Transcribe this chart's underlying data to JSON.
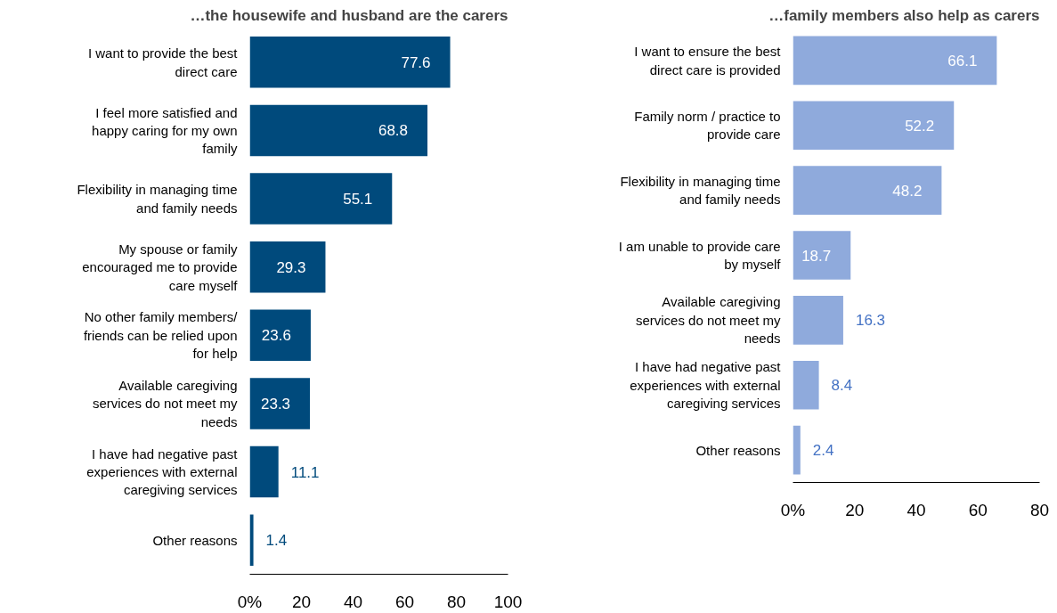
{
  "chart_data": [
    {
      "type": "bar",
      "orientation": "horizontal",
      "title": "…the housewife and husband are the carers",
      "categories": [
        "I want to provide the best direct care",
        "I feel more satisfied and happy caring for my own family",
        "Flexibility in managing time and family needs",
        "My spouse or family encouraged me to provide care myself",
        "No other family members/ friends can be relied upon for help",
        "Available caregiving services do not meet my needs",
        "I have had negative past experiences with external caregiving services",
        "Other reasons"
      ],
      "values": [
        77.6,
        68.8,
        55.1,
        29.3,
        23.6,
        23.3,
        11.1,
        1.4
      ],
      "color": "#004a7c",
      "data_labels": true,
      "xlim": [
        0,
        100
      ],
      "xticks": [
        {
          "value": 0,
          "label": "0%"
        },
        20,
        40,
        60,
        80,
        100
      ],
      "grid": false
    },
    {
      "type": "bar",
      "orientation": "horizontal",
      "title": "…family members also help as carers",
      "categories": [
        "I want to ensure the best direct care is provided",
        "Family norm / practice to provide care",
        "Flexibility in managing time and family needs",
        "I am unable to provide care by myself",
        "Available caregiving services do not meet my needs",
        "I have had negative past experiences with external caregiving services",
        "Other reasons"
      ],
      "values": [
        66.1,
        52.2,
        48.2,
        18.7,
        16.3,
        8.4,
        2.4
      ],
      "color": "#8faadc",
      "data_labels": true,
      "xlim": [
        0,
        80
      ],
      "xticks": [
        {
          "value": 0,
          "label": "0%"
        },
        20,
        40,
        60,
        80
      ],
      "grid": false
    }
  ]
}
